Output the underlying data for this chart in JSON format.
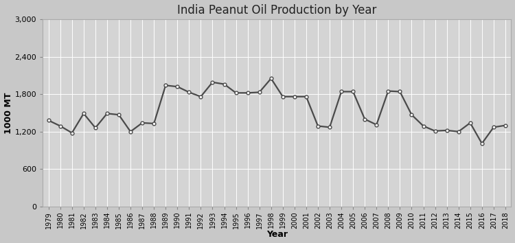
{
  "title": "India Peanut Oil Production by Year",
  "xlabel": "Year",
  "ylabel": "1000 MT",
  "years": [
    1979,
    1980,
    1981,
    1982,
    1983,
    1984,
    1985,
    1986,
    1987,
    1988,
    1989,
    1990,
    1991,
    1992,
    1993,
    1994,
    1995,
    1996,
    1997,
    1998,
    1999,
    2000,
    2001,
    2002,
    2003,
    2004,
    2005,
    2006,
    2007,
    2008,
    2009,
    2010,
    2011,
    2012,
    2013,
    2014,
    2015,
    2016,
    2017,
    2018
  ],
  "values": [
    1380,
    1290,
    1180,
    1490,
    1260,
    1490,
    1470,
    1200,
    1340,
    1330,
    1940,
    1920,
    1830,
    1760,
    1990,
    1960,
    1820,
    1820,
    1830,
    2050,
    1760,
    1760,
    1760,
    1290,
    1270,
    1840,
    1840,
    1400,
    1310,
    1850,
    1840,
    1470,
    1290,
    1210,
    1220,
    1200,
    1340,
    1010,
    1270,
    1300
  ],
  "ylim": [
    0,
    3000
  ],
  "yticks": [
    0,
    600,
    1200,
    1800,
    2400,
    3000
  ],
  "line_color": "#4a4a4a",
  "marker_facecolor": "#ffffff",
  "marker_edgecolor": "#4a4a4a",
  "fig_facecolor": "#c8c8c8",
  "axes_facecolor": "#d4d4d4",
  "grid_color": "#ffffff",
  "title_fontsize": 12,
  "axis_label_fontsize": 9,
  "tick_fontsize": 8,
  "xtick_fontsize": 7
}
